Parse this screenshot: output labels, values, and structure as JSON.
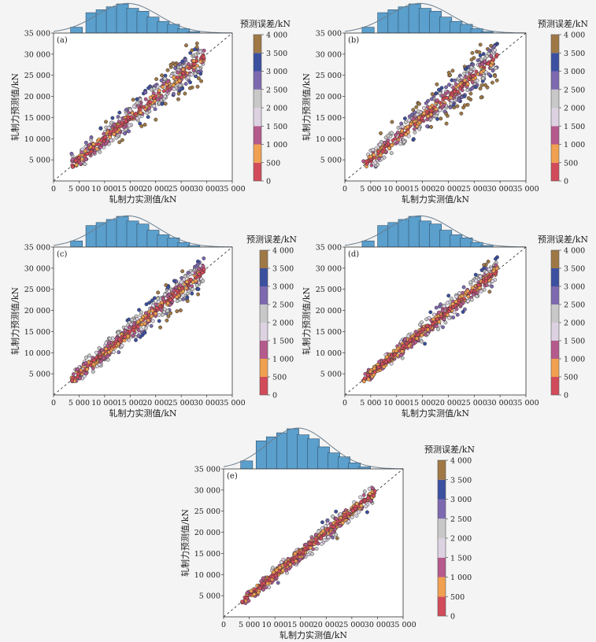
{
  "chart_data": [
    {
      "type": "scatter",
      "panel_label": "(a)",
      "xlabel": "轧制力实测值/kN",
      "ylabel": "轧制力预测值/kN",
      "xlim": [
        0,
        35000
      ],
      "ylim": [
        0,
        35000
      ],
      "x_ticks": [
        "0",
        "5 000",
        "10 000",
        "15 000",
        "20 000",
        "25 000",
        "30 000",
        "35 000"
      ],
      "y_ticks": [
        "5 000",
        "10 000",
        "15 000",
        "20 000",
        "25 000",
        "30 000",
        "35 000"
      ],
      "reference_line": "y = x (dashed)",
      "colorbar": {
        "title": "预测误差/kN",
        "ticks": [
          "0",
          "500",
          "1 000",
          "1 500",
          "2 000",
          "2 500",
          "3 000",
          "3 500",
          "4 000"
        ],
        "colors": [
          "#d24b5a",
          "#f0a050",
          "#b45a8c",
          "#dcd2e1",
          "#c8c8c8",
          "#7d69af",
          "#3c50a0",
          "#a07845"
        ]
      },
      "histogram": {
        "bins_center_kN": [
          4500,
          7500,
          9500,
          11500,
          13500,
          15500,
          17500,
          19500,
          21500,
          23500,
          25500,
          27500
        ],
        "relative_height": [
          0.2,
          0.7,
          0.8,
          0.9,
          1.0,
          0.85,
          0.75,
          0.55,
          0.4,
          0.3,
          0.15,
          0.05
        ]
      },
      "scatter_spread_kN": 1500
    },
    {
      "type": "scatter",
      "panel_label": "(b)",
      "xlabel": "轧制力实测值/kN",
      "ylabel": "轧制力预测值/kN",
      "xlim": [
        0,
        35000
      ],
      "ylim": [
        0,
        35000
      ],
      "x_ticks": [
        "0",
        "5 000",
        "10 000",
        "15 000",
        "20 000",
        "25 000",
        "30 000",
        "35 000"
      ],
      "y_ticks": [
        "5 000",
        "10 000",
        "15 000",
        "20 000",
        "25 000",
        "30 000",
        "35 000"
      ],
      "reference_line": "y = x (dashed)",
      "colorbar": {
        "title": "预测误差/kN",
        "ticks": [
          "0",
          "500",
          "1 000",
          "1 500",
          "2 000",
          "2 500",
          "3 000",
          "3 500",
          "4 000"
        ],
        "colors": [
          "#d24b5a",
          "#f0a050",
          "#b45a8c",
          "#dcd2e1",
          "#c8c8c8",
          "#7d69af",
          "#3c50a0",
          "#a07845"
        ]
      },
      "histogram": {
        "bins_center_kN": [
          4500,
          7500,
          9500,
          11500,
          13500,
          15500,
          17500,
          19500,
          21500,
          23500,
          25500,
          27500
        ],
        "relative_height": [
          0.2,
          0.7,
          0.8,
          0.9,
          1.0,
          0.85,
          0.75,
          0.55,
          0.4,
          0.3,
          0.15,
          0.05
        ]
      },
      "scatter_spread_kN": 1700
    },
    {
      "type": "scatter",
      "panel_label": "(c)",
      "xlabel": "轧制力实测值/kN",
      "ylabel": "轧制力预测值/kN",
      "xlim": [
        0,
        35000
      ],
      "ylim": [
        0,
        35000
      ],
      "x_ticks": [
        "0",
        "5 000",
        "10 000",
        "15 000",
        "20 000",
        "25 000",
        "30 000",
        "35 000"
      ],
      "y_ticks": [
        "5 000",
        "10 000",
        "15 000",
        "20 000",
        "25 000",
        "30 000",
        "35 000"
      ],
      "reference_line": "y = x (dashed)",
      "colorbar": {
        "title": "预测误差/kN",
        "ticks": [
          "0",
          "500",
          "1 000",
          "1 500",
          "2 000",
          "2 500",
          "3 000",
          "3 500",
          "4 000"
        ],
        "colors": [
          "#d24b5a",
          "#f0a050",
          "#b45a8c",
          "#dcd2e1",
          "#c8c8c8",
          "#7d69af",
          "#3c50a0",
          "#a07845"
        ]
      },
      "histogram": {
        "bins_center_kN": [
          4500,
          7500,
          9500,
          11500,
          13500,
          15500,
          17500,
          19500,
          21500,
          23500,
          25500,
          27500
        ],
        "relative_height": [
          0.2,
          0.7,
          0.8,
          0.9,
          1.0,
          0.85,
          0.75,
          0.55,
          0.4,
          0.3,
          0.15,
          0.05
        ]
      },
      "scatter_spread_kN": 1300
    },
    {
      "type": "scatter",
      "panel_label": "(d)",
      "xlabel": "轧制力实测值/kN",
      "ylabel": "轧制力预测值/kN",
      "xlim": [
        0,
        35000
      ],
      "ylim": [
        0,
        35000
      ],
      "x_ticks": [
        "0",
        "5 000",
        "10 000",
        "15 000",
        "20 000",
        "25 000",
        "30 000",
        "35 000"
      ],
      "y_ticks": [
        "5 000",
        "10 000",
        "15 000",
        "20 000",
        "25 000",
        "30 000",
        "35 000"
      ],
      "reference_line": "y = x (dashed)",
      "colorbar": {
        "title": "预测误差/kN",
        "ticks": [
          "0",
          "500",
          "1 000",
          "1 500",
          "2 000",
          "2 500",
          "3 000",
          "3 500",
          "4 000"
        ],
        "colors": [
          "#d24b5a",
          "#f0a050",
          "#b45a8c",
          "#dcd2e1",
          "#c8c8c8",
          "#7d69af",
          "#3c50a0",
          "#a07845"
        ]
      },
      "histogram": {
        "bins_center_kN": [
          4500,
          7500,
          9500,
          11500,
          13500,
          15500,
          17500,
          19500,
          21500,
          23500,
          25500,
          27500
        ],
        "relative_height": [
          0.2,
          0.7,
          0.8,
          0.9,
          1.0,
          0.85,
          0.75,
          0.55,
          0.4,
          0.3,
          0.15,
          0.05
        ]
      },
      "scatter_spread_kN": 1000
    },
    {
      "type": "scatter",
      "panel_label": "(e)",
      "xlabel": "轧制力实测值/kN",
      "ylabel": "轧制力预测值/kN",
      "xlim": [
        0,
        35000
      ],
      "ylim": [
        0,
        35000
      ],
      "x_ticks": [
        "0",
        "5 000",
        "10 000",
        "15 000",
        "20 000",
        "25 000",
        "30 000",
        "35 000"
      ],
      "y_ticks": [
        "5 000",
        "10 000",
        "15 000",
        "20 000",
        "25 000",
        "30 000",
        "35 000"
      ],
      "reference_line": "y = x (dashed)",
      "colorbar": {
        "title": "预测误差/kN",
        "ticks": [
          "0",
          "500",
          "1 000",
          "1 500",
          "2 000",
          "2 500",
          "3 000",
          "3 500",
          "4 000"
        ],
        "colors": [
          "#d24b5a",
          "#f0a050",
          "#b45a8c",
          "#dcd2e1",
          "#c8c8c8",
          "#7d69af",
          "#3c50a0",
          "#a07845"
        ]
      },
      "histogram": {
        "bins_center_kN": [
          4500,
          7500,
          9500,
          11500,
          13500,
          15500,
          17500,
          19500,
          21500,
          23500,
          25500,
          27500
        ],
        "relative_height": [
          0.2,
          0.7,
          0.8,
          0.9,
          1.0,
          0.85,
          0.75,
          0.55,
          0.4,
          0.3,
          0.15,
          0.05
        ]
      },
      "scatter_spread_kN": 800
    }
  ]
}
